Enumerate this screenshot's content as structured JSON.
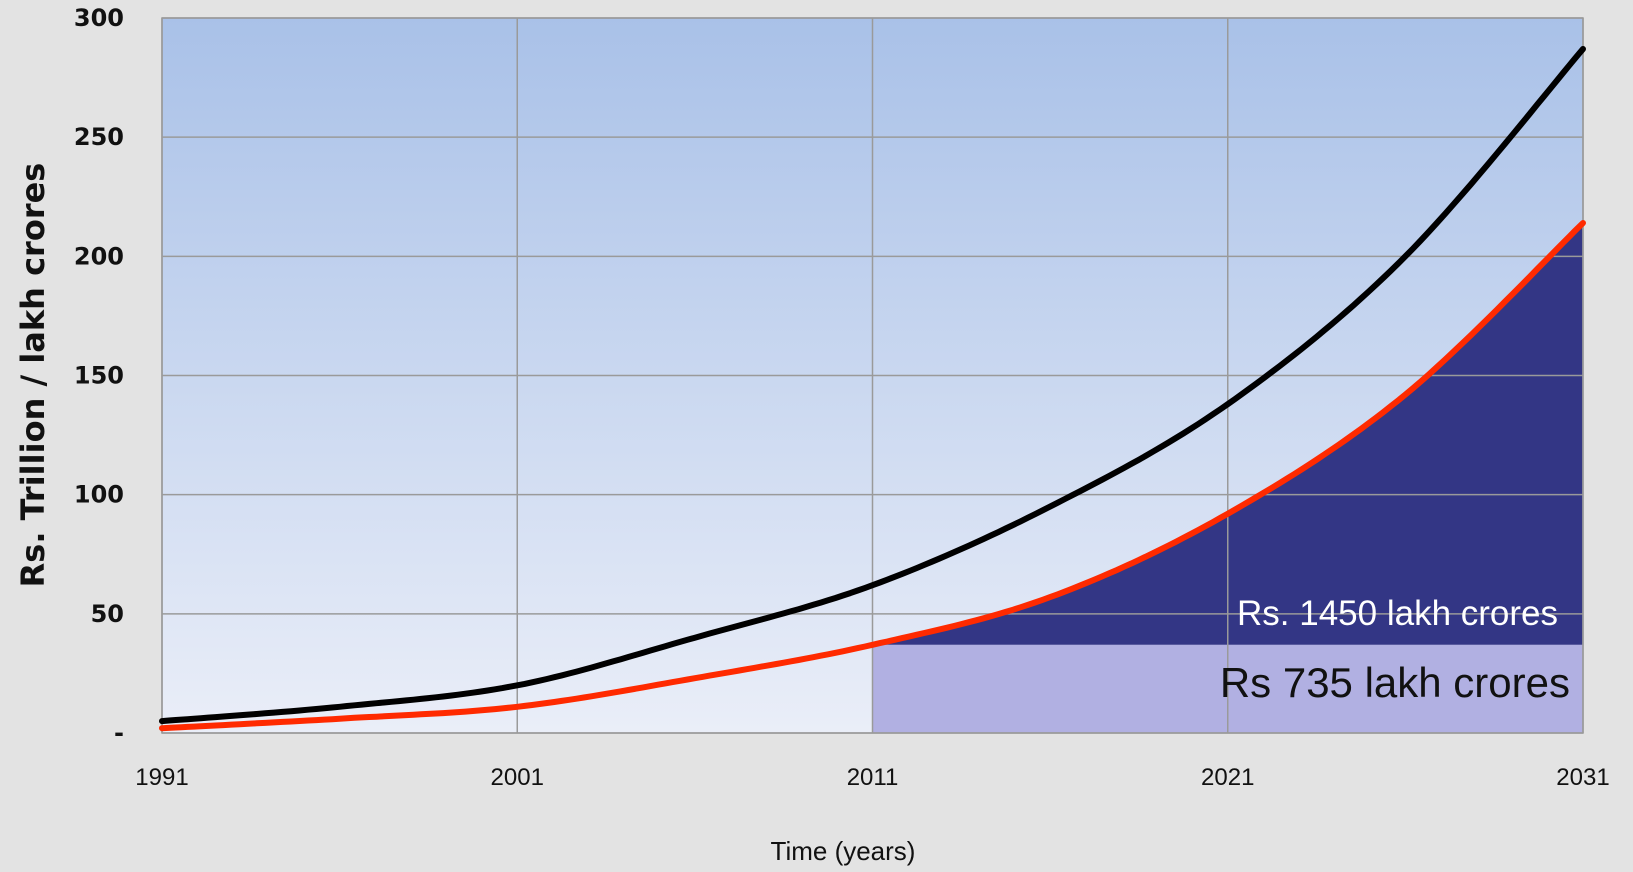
{
  "chart_data": {
    "type": "line",
    "title": "",
    "xlabel": "Time (years)",
    "ylabel": "Rs. Trillion / lakh crores",
    "xlim": [
      1991,
      2031
    ],
    "ylim": [
      0,
      300
    ],
    "x_ticks": [
      {
        "value": 1991,
        "label": "1991"
      },
      {
        "value": 2001,
        "label": "2001"
      },
      {
        "value": 2011,
        "label": "2011"
      },
      {
        "value": 2021,
        "label": "2021"
      },
      {
        "value": 2031,
        "label": "2031"
      }
    ],
    "y_ticks": [
      {
        "value": 0,
        "label": "-"
      },
      {
        "value": 50,
        "label": "50"
      },
      {
        "value": 100,
        "label": "100"
      },
      {
        "value": 150,
        "label": "150"
      },
      {
        "value": 200,
        "label": "200"
      },
      {
        "value": 250,
        "label": "250"
      },
      {
        "value": 300,
        "label": "300"
      }
    ],
    "grid": true,
    "legend": "none",
    "series": [
      {
        "color": "#000000",
        "x": [
          1991,
          1996,
          2001,
          2006,
          2011,
          2016,
          2021,
          2026,
          2031
        ],
        "y": [
          5,
          11,
          20,
          40,
          62,
          95,
          138,
          200,
          287
        ]
      },
      {
        "color": "#ff2a00",
        "x": [
          1991,
          1996,
          2001,
          2006,
          2011,
          2016,
          2021,
          2026,
          2031
        ],
        "y": [
          2,
          6,
          11,
          23,
          37,
          57,
          92,
          142,
          214
        ]
      }
    ],
    "shaded_regions": [
      {
        "kind": "under-series",
        "series_index": 1,
        "x_from": 2011,
        "x_to": 2031,
        "y_floor": 37,
        "color": "#333685",
        "label": "Rs. 1450 lakh crores"
      },
      {
        "kind": "band",
        "x_from": 2011,
        "x_to": 2031,
        "y_from": 0,
        "y_to": 37,
        "color": "#b1b0e2",
        "label": "Rs 735 lakh crores"
      }
    ],
    "colors": {
      "background": "#e3e3e3",
      "plot_top": "#a9c1e8",
      "plot_bottom": "#eaeef8",
      "grid": "#9a9a9a"
    }
  }
}
